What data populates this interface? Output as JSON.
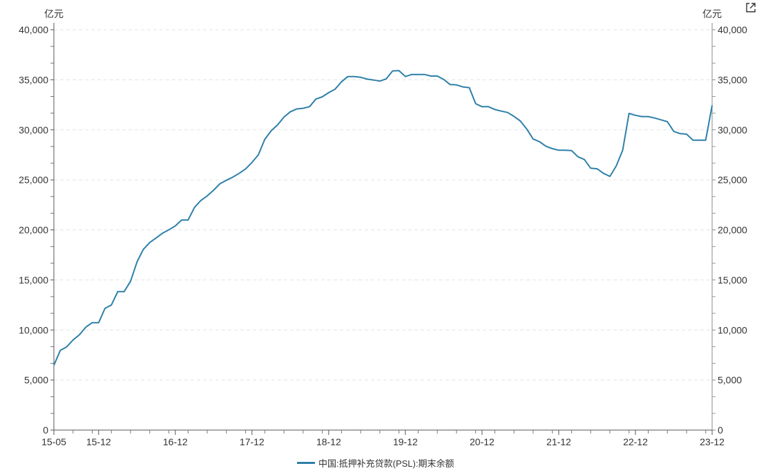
{
  "chart_data": {
    "type": "line",
    "left_unit": "亿元",
    "right_unit": "亿元",
    "x_start": "15-05",
    "x_end": "23-12",
    "x_tick_labels": [
      "15-05",
      "15-12",
      "16-12",
      "17-12",
      "18-12",
      "19-12",
      "20-12",
      "21-12",
      "22-12",
      "23-12"
    ],
    "y_tick_labels": [
      "0",
      "5,000",
      "10,000",
      "15,000",
      "20,000",
      "25,000",
      "30,000",
      "35,000",
      "40,000"
    ],
    "ylim": [
      0,
      40000
    ],
    "grid": true,
    "legend_position": "bottom",
    "series": [
      {
        "name": "中国:抵押补充贷款(PSL):期末余额",
        "color": "#2d7fa8",
        "values": [
          6470,
          7960,
          8310,
          9000,
          9530,
          10290,
          10730,
          10730,
          12160,
          12500,
          13840,
          13840,
          14870,
          16790,
          18050,
          18740,
          19190,
          19670,
          20010,
          20400,
          20980,
          20980,
          22250,
          22940,
          23400,
          23970,
          24620,
          24960,
          25280,
          25650,
          26090,
          26740,
          27500,
          29040,
          29910,
          30490,
          31270,
          31800,
          32080,
          32150,
          32310,
          33070,
          33300,
          33710,
          34060,
          34800,
          35320,
          35320,
          35250,
          35070,
          34980,
          34870,
          35090,
          35880,
          35920,
          35320,
          35530,
          35530,
          35530,
          35370,
          35370,
          35030,
          34520,
          34490,
          34290,
          34220,
          32610,
          32310,
          32310,
          32030,
          31870,
          31730,
          31340,
          30880,
          30070,
          29080,
          28810,
          28350,
          28120,
          27960,
          27960,
          27930,
          27310,
          27030,
          26160,
          26110,
          25650,
          25350,
          26390,
          27960,
          31640,
          31450,
          31320,
          31320,
          31180,
          31000,
          30810,
          29840,
          29620,
          29570,
          28970,
          28970,
          28970,
          32450
        ]
      }
    ]
  },
  "icons": {
    "expand": "external-link-icon"
  }
}
